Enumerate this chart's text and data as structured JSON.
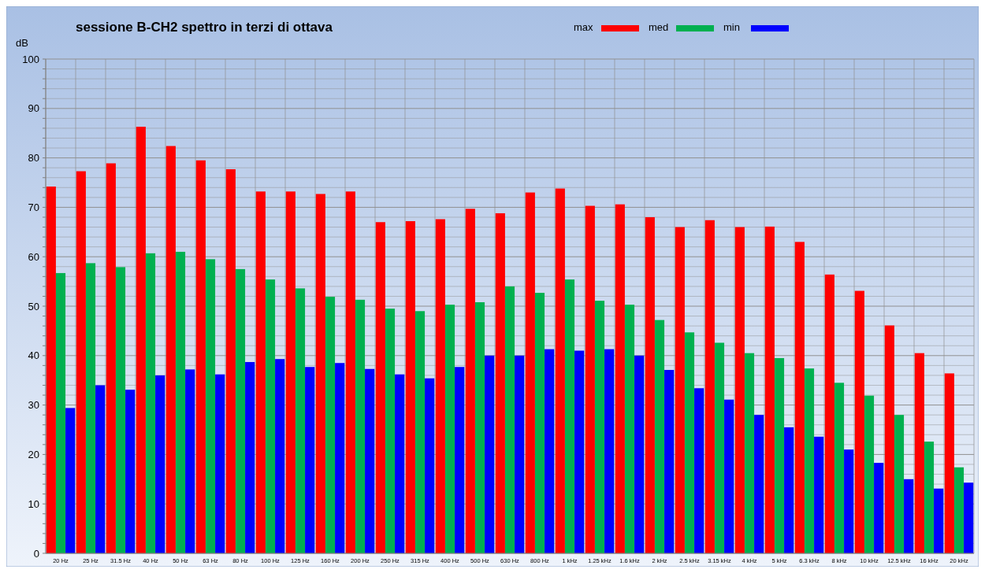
{
  "chart_data": {
    "type": "bar",
    "title": "sessione B-CH2 spettro in terzi di ottava",
    "ylabel": "dB",
    "categories": [
      "20 Hz",
      "25 Hz",
      "31.5 Hz",
      "40 Hz",
      "50 Hz",
      "63 Hz",
      "80 Hz",
      "100 Hz",
      "125 Hz",
      "160 Hz",
      "200 Hz",
      "250 Hz",
      "315 Hz",
      "400 Hz",
      "500 Hz",
      "630 Hz",
      "800 Hz",
      "1 kHz",
      "1.25 kHz",
      "1.6 kHz",
      "2 kHz",
      "2.5 kHz",
      "3.15 kHz",
      "4 kHz",
      "5 kHz",
      "6.3 kHz",
      "8 kHz",
      "10 kHz",
      "12.5 kHz",
      "16 kHz",
      "20 kHz"
    ],
    "series": [
      {
        "name": "max",
        "color": "#ff0000",
        "values": [
          74.2,
          77.3,
          78.9,
          86.3,
          82.4,
          79.5,
          77.7,
          73.2,
          73.2,
          72.7,
          73.2,
          67.0,
          67.2,
          67.6,
          69.7,
          68.8,
          73.0,
          73.8,
          70.3,
          70.6,
          68.0,
          66.0,
          67.4,
          66.0,
          66.1,
          63.0,
          56.4,
          53.1,
          46.1,
          40.5,
          36.4
        ]
      },
      {
        "name": "med",
        "color": "#00b050",
        "values": [
          56.7,
          58.7,
          57.9,
          60.7,
          61.0,
          59.5,
          57.5,
          55.4,
          53.6,
          51.9,
          51.3,
          49.5,
          49.0,
          50.3,
          50.8,
          54.0,
          52.7,
          55.4,
          51.1,
          50.3,
          47.2,
          44.7,
          42.6,
          40.5,
          39.5,
          37.4,
          34.5,
          31.9,
          28.0,
          22.6,
          17.4
        ]
      },
      {
        "name": "min",
        "color": "#0000ff",
        "values": [
          29.4,
          34.0,
          33.1,
          36.0,
          37.2,
          36.2,
          38.7,
          39.3,
          37.7,
          38.5,
          37.3,
          36.2,
          35.4,
          37.7,
          40.0,
          40.0,
          41.3,
          41.0,
          41.3,
          40.0,
          37.1,
          33.4,
          31.1,
          28.0,
          25.5,
          23.6,
          21.0,
          18.3,
          15.0,
          13.1,
          14.3
        ]
      }
    ],
    "ylim": [
      0,
      100
    ],
    "yticks": [
      0,
      {
        "value": 2,
        "label": null
      },
      {
        "value": 4,
        "label": null
      },
      {
        "value": 6,
        "label": null
      },
      {
        "value": 8,
        "label": null
      },
      10,
      {
        "value": 12,
        "label": null
      },
      {
        "value": 14,
        "label": null
      },
      {
        "value": 16,
        "label": null
      },
      {
        "value": 18,
        "label": null
      },
      20,
      {
        "value": 22,
        "label": null
      },
      {
        "value": 24,
        "label": null
      },
      {
        "value": 26,
        "label": null
      },
      {
        "value": 28,
        "label": null
      },
      30,
      {
        "value": 32,
        "label": null
      },
      {
        "value": 34,
        "label": null
      },
      {
        "value": 36,
        "label": null
      },
      {
        "value": 38,
        "label": null
      },
      40,
      {
        "value": 42,
        "label": null
      },
      {
        "value": 44,
        "label": null
      },
      {
        "value": 46,
        "label": null
      },
      {
        "value": 48,
        "label": null
      },
      50,
      {
        "value": 52,
        "label": null
      },
      {
        "value": 54,
        "label": null
      },
      {
        "value": 56,
        "label": null
      },
      {
        "value": 58,
        "label": null
      },
      60,
      {
        "value": 62,
        "label": null
      },
      {
        "value": 64,
        "label": null
      },
      {
        "value": 66,
        "label": null
      },
      {
        "value": 68,
        "label": null
      },
      70,
      {
        "value": 72,
        "label": null
      },
      {
        "value": 74,
        "label": null
      },
      {
        "value": 76,
        "label": null
      },
      {
        "value": 78,
        "label": null
      },
      80,
      {
        "value": 82,
        "label": null
      },
      {
        "value": 84,
        "label": null
      },
      {
        "value": 86,
        "label": null
      },
      {
        "value": 88,
        "label": null
      },
      90,
      {
        "value": 92,
        "label": null
      },
      {
        "value": 94,
        "label": null
      },
      {
        "value": 96,
        "label": null
      },
      {
        "value": 98,
        "label": null
      },
      100
    ],
    "grid": true,
    "legend": "top right"
  }
}
